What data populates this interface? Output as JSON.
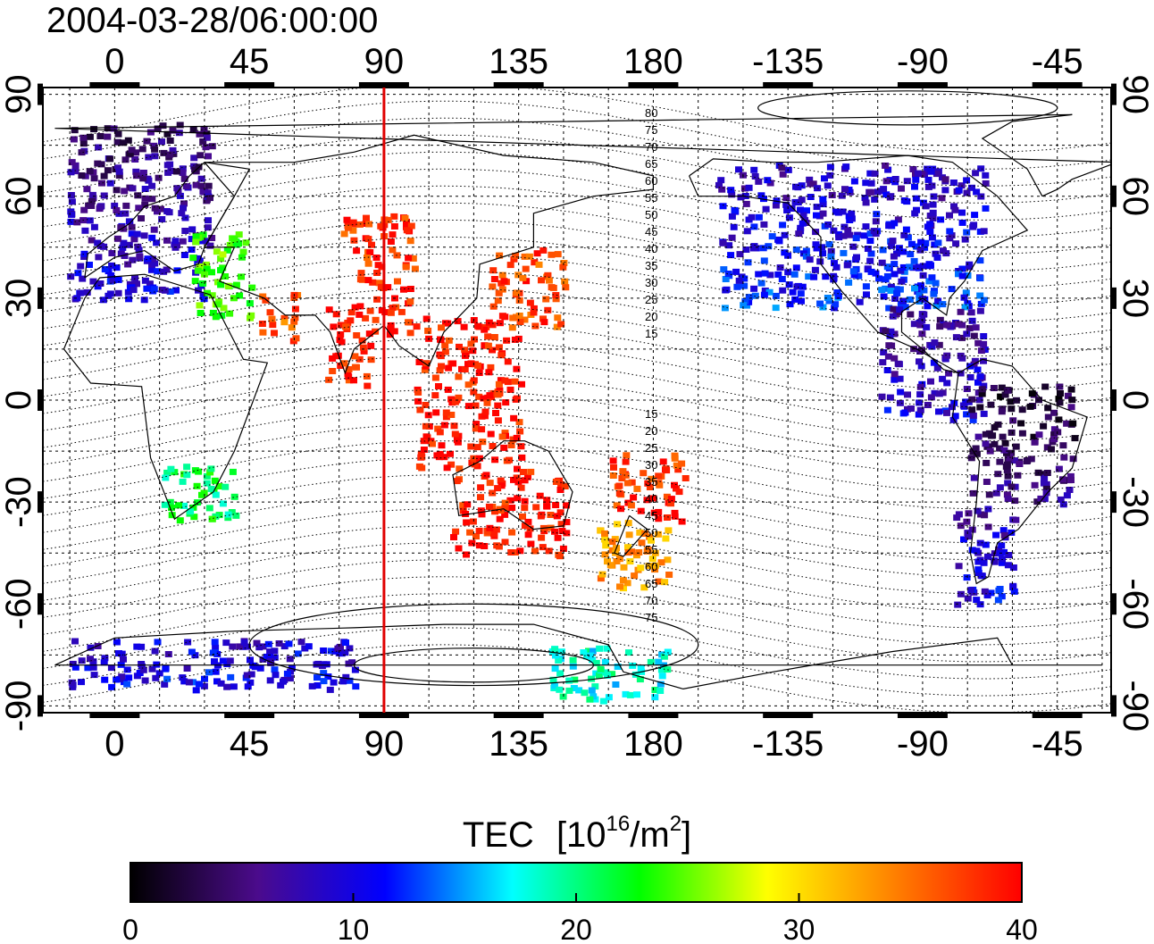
{
  "header": {
    "timestamp": "2004-03-28/06:00:00"
  },
  "map": {
    "lon_ticks": [
      "0",
      "45",
      "90",
      "135",
      "180",
      "-135",
      "-90",
      "-45"
    ],
    "lon_values": [
      0,
      45,
      90,
      135,
      180,
      225,
      270,
      315
    ],
    "lat_ticks": [
      "90",
      "60",
      "30",
      "0",
      "-30",
      "-60",
      "-90"
    ],
    "lat_values": [
      90,
      60,
      30,
      0,
      -30,
      -60,
      -90
    ],
    "lon_range": [
      -24,
      333
    ],
    "lat_range": [
      -92,
      92
    ],
    "gridlines": true,
    "highlight_meridian_lon": 90,
    "highlight_meridian_color": "#e00000",
    "contour_labels_north": [
      "80",
      "75",
      "70",
      "65",
      "60",
      "55",
      "50",
      "45",
      "40",
      "35",
      "30",
      "25",
      "20",
      "15"
    ],
    "contour_labels_south": [
      "15",
      "20",
      "25",
      "30",
      "35",
      "40",
      "45",
      "50",
      "55",
      "60",
      "65",
      "70",
      "75"
    ]
  },
  "colorbar": {
    "label_main": "TEC",
    "label_unit_prefix": "[10",
    "label_unit_exp": "16",
    "label_unit_mid": "/m",
    "label_unit_exp2": "2",
    "label_unit_suffix": "]",
    "ticks": [
      "0",
      "10",
      "20",
      "30",
      "40"
    ],
    "tick_values": [
      0,
      10,
      20,
      30,
      40
    ],
    "range": [
      0,
      40
    ],
    "colors": [
      "#000000",
      "#4b0b8c",
      "#0000ff",
      "#00ffff",
      "#00ff00",
      "#ffff00",
      "#ff8000",
      "#ff0000"
    ]
  },
  "tec_regions": [
    {
      "lon": [
        -16,
        32
      ],
      "lat": [
        30,
        83
      ],
      "tec": 7
    },
    {
      "lon": [
        25,
        45
      ],
      "lat": [
        25,
        50
      ],
      "tec": 24
    },
    {
      "lon": [
        48,
        60
      ],
      "lat": [
        18,
        32
      ],
      "tec": 36
    },
    {
      "lon": [
        75,
        100
      ],
      "lat": [
        35,
        55
      ],
      "tec": 38
    },
    {
      "lon": [
        85,
        100
      ],
      "lat": [
        20,
        35
      ],
      "tec": 39
    },
    {
      "lon": [
        125,
        150
      ],
      "lat": [
        22,
        45
      ],
      "tec": 37
    },
    {
      "lon": [
        70,
        85
      ],
      "lat": [
        5,
        30
      ],
      "tec": 39
    },
    {
      "lon": [
        100,
        135
      ],
      "lat": [
        -20,
        25
      ],
      "tec": 39
    },
    {
      "lon": [
        112,
        150
      ],
      "lat": [
        -45,
        -20
      ],
      "tec": 39
    },
    {
      "lon": [
        160,
        185
      ],
      "lat": [
        -55,
        -35
      ],
      "tec": 33
    },
    {
      "lon": [
        165,
        190
      ],
      "lat": [
        -35,
        -15
      ],
      "tec": 38
    },
    {
      "lon": [
        15,
        40
      ],
      "lat": [
        -35,
        -18
      ],
      "tec": 21
    },
    {
      "lon": [
        200,
        290
      ],
      "lat": [
        28,
        70
      ],
      "tec": 10
    },
    {
      "lon": [
        255,
        290
      ],
      "lat": [
        -5,
        28
      ],
      "tec": 8
    },
    {
      "lon": [
        285,
        320
      ],
      "lat": [
        -30,
        5
      ],
      "tec": 4
    },
    {
      "lon": [
        280,
        300
      ],
      "lat": [
        -60,
        -30
      ],
      "tec": 9
    },
    {
      "lon": [
        -16,
        80
      ],
      "lat": [
        -85,
        -70
      ],
      "tec": 10
    },
    {
      "lon": [
        145,
        185
      ],
      "lat": [
        -88,
        -72
      ],
      "tec": 18
    }
  ]
}
